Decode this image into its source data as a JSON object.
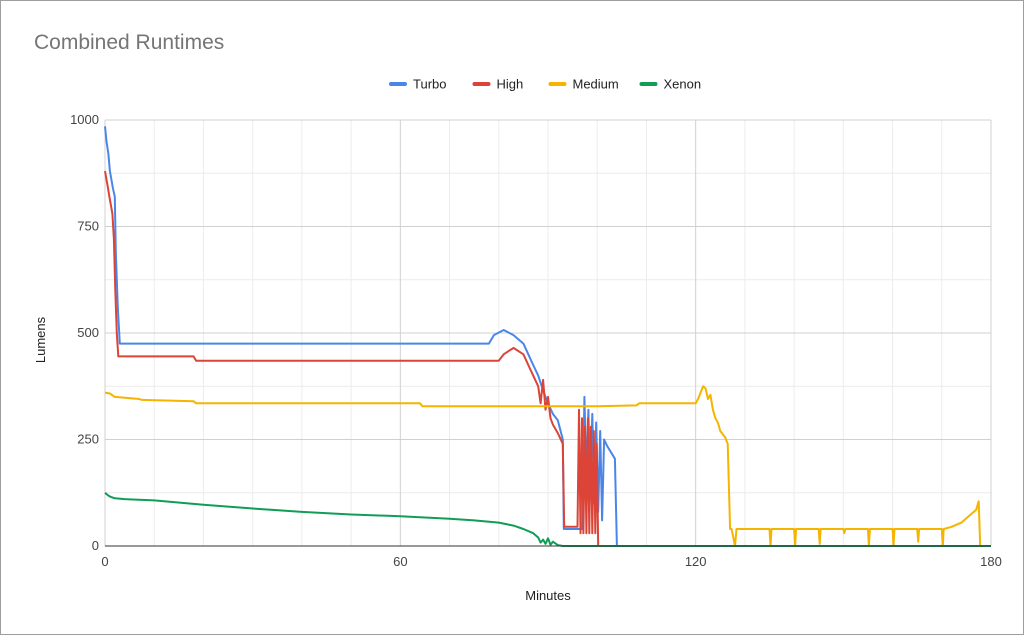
{
  "chart_data": {
    "type": "line",
    "title": "Combined Runtimes",
    "xlabel": "Minutes",
    "ylabel": "Lumens",
    "xlim": [
      0,
      180
    ],
    "ylim": [
      0,
      1000
    ],
    "xticks": [
      0,
      60,
      120,
      180
    ],
    "yticks": [
      0,
      250,
      500,
      750,
      1000
    ],
    "grid": true,
    "legend_position": "top",
    "series": [
      {
        "name": "Turbo",
        "color": "#4a86e8",
        "points": [
          [
            0,
            985
          ],
          [
            0.3,
            950
          ],
          [
            0.7,
            920
          ],
          [
            1,
            880
          ],
          [
            1.3,
            860
          ],
          [
            1.6,
            840
          ],
          [
            2,
            820
          ],
          [
            2.2,
            690
          ],
          [
            2.6,
            560
          ],
          [
            3,
            475
          ],
          [
            30,
            475
          ],
          [
            60,
            475
          ],
          [
            78,
            475
          ],
          [
            79,
            495
          ],
          [
            81,
            507
          ],
          [
            83,
            495
          ],
          [
            85,
            475
          ],
          [
            86,
            450
          ],
          [
            87,
            425
          ],
          [
            88,
            400
          ],
          [
            89,
            365
          ],
          [
            90,
            335
          ],
          [
            91,
            310
          ],
          [
            92,
            295
          ],
          [
            93,
            250
          ],
          [
            93.2,
            40
          ],
          [
            94,
            40
          ],
          [
            95,
            40
          ],
          [
            96,
            40
          ],
          [
            97,
            40
          ],
          [
            97.4,
            350
          ],
          [
            97.8,
            160
          ],
          [
            98.2,
            320
          ],
          [
            98.6,
            120
          ],
          [
            99,
            310
          ],
          [
            99.4,
            100
          ],
          [
            99.8,
            290
          ],
          [
            100.2,
            80
          ],
          [
            100.6,
            270
          ],
          [
            101,
            60
          ],
          [
            101.4,
            250
          ],
          [
            102,
            235
          ],
          [
            102.8,
            220
          ],
          [
            103.6,
            205
          ],
          [
            104,
            0
          ],
          [
            180,
            0
          ]
        ]
      },
      {
        "name": "High",
        "color": "#db4437",
        "points": [
          [
            0,
            880
          ],
          [
            0.3,
            860
          ],
          [
            0.6,
            840
          ],
          [
            0.9,
            820
          ],
          [
            1.2,
            800
          ],
          [
            1.5,
            780
          ],
          [
            1.8,
            720
          ],
          [
            2.1,
            600
          ],
          [
            2.4,
            500
          ],
          [
            2.7,
            445
          ],
          [
            18,
            445
          ],
          [
            18.5,
            435
          ],
          [
            60,
            435
          ],
          [
            80,
            435
          ],
          [
            81,
            450
          ],
          [
            83,
            465
          ],
          [
            85,
            450
          ],
          [
            86,
            425
          ],
          [
            87,
            400
          ],
          [
            88,
            375
          ],
          [
            88.5,
            335
          ],
          [
            89,
            390
          ],
          [
            89.5,
            320
          ],
          [
            90,
            350
          ],
          [
            90.5,
            300
          ],
          [
            91,
            285
          ],
          [
            92,
            265
          ],
          [
            93,
            240
          ],
          [
            93.3,
            45
          ],
          [
            96,
            45
          ],
          [
            96.3,
            320
          ],
          [
            96.6,
            30
          ],
          [
            96.9,
            300
          ],
          [
            97.2,
            30
          ],
          [
            97.5,
            280
          ],
          [
            97.8,
            30
          ],
          [
            98.1,
            300
          ],
          [
            98.4,
            30
          ],
          [
            98.7,
            280
          ],
          [
            99,
            30
          ],
          [
            99.3,
            270
          ],
          [
            99.6,
            30
          ],
          [
            99.9,
            240
          ],
          [
            100.2,
            0
          ],
          [
            180,
            0
          ]
        ]
      },
      {
        "name": "Medium",
        "color": "#f4b400",
        "points": [
          [
            0,
            360
          ],
          [
            1,
            358
          ],
          [
            2,
            350
          ],
          [
            7,
            345
          ],
          [
            7.5,
            343
          ],
          [
            18,
            340
          ],
          [
            18.5,
            335
          ],
          [
            64,
            335
          ],
          [
            64.5,
            328
          ],
          [
            100,
            328
          ],
          [
            108,
            330
          ],
          [
            108.5,
            335
          ],
          [
            120,
            335
          ],
          [
            120.5,
            345
          ],
          [
            121,
            360
          ],
          [
            121.5,
            375
          ],
          [
            122,
            370
          ],
          [
            122.5,
            345
          ],
          [
            123,
            355
          ],
          [
            123.5,
            320
          ],
          [
            124,
            300
          ],
          [
            124.5,
            290
          ],
          [
            125,
            270
          ],
          [
            126,
            255
          ],
          [
            126.5,
            240
          ],
          [
            127,
            40
          ],
          [
            127.3,
            40
          ],
          [
            128,
            0
          ],
          [
            128.3,
            40
          ],
          [
            135,
            40
          ],
          [
            135.2,
            0
          ],
          [
            135.4,
            40
          ],
          [
            140,
            40
          ],
          [
            140.2,
            0
          ],
          [
            140.4,
            40
          ],
          [
            145,
            40
          ],
          [
            145.2,
            5
          ],
          [
            145.4,
            40
          ],
          [
            150,
            40
          ],
          [
            150.2,
            30
          ],
          [
            150.4,
            40
          ],
          [
            155,
            40
          ],
          [
            155.2,
            0
          ],
          [
            155.4,
            40
          ],
          [
            160,
            40
          ],
          [
            160.2,
            0
          ],
          [
            160.4,
            40
          ],
          [
            165,
            40
          ],
          [
            165.2,
            10
          ],
          [
            165.4,
            40
          ],
          [
            170,
            40
          ],
          [
            170.2,
            0
          ],
          [
            170.4,
            40
          ],
          [
            172,
            45
          ],
          [
            174,
            55
          ],
          [
            175,
            65
          ],
          [
            176,
            75
          ],
          [
            177,
            85
          ],
          [
            177.5,
            105
          ],
          [
            177.8,
            0
          ],
          [
            180,
            0
          ]
        ]
      },
      {
        "name": "Xenon",
        "color": "#0f9d58",
        "points": [
          [
            0,
            125
          ],
          [
            0.5,
            120
          ],
          [
            1,
            116
          ],
          [
            2,
            112
          ],
          [
            4,
            110
          ],
          [
            10,
            107
          ],
          [
            20,
            97
          ],
          [
            30,
            88
          ],
          [
            40,
            80
          ],
          [
            50,
            74
          ],
          [
            60,
            70
          ],
          [
            70,
            64
          ],
          [
            75,
            60
          ],
          [
            80,
            55
          ],
          [
            83,
            48
          ],
          [
            85,
            40
          ],
          [
            87,
            30
          ],
          [
            88,
            20
          ],
          [
            88.5,
            8
          ],
          [
            89,
            15
          ],
          [
            89.5,
            5
          ],
          [
            90,
            18
          ],
          [
            90.5,
            3
          ],
          [
            91,
            10
          ],
          [
            92,
            2
          ],
          [
            93,
            0
          ],
          [
            180,
            0
          ]
        ]
      }
    ]
  }
}
